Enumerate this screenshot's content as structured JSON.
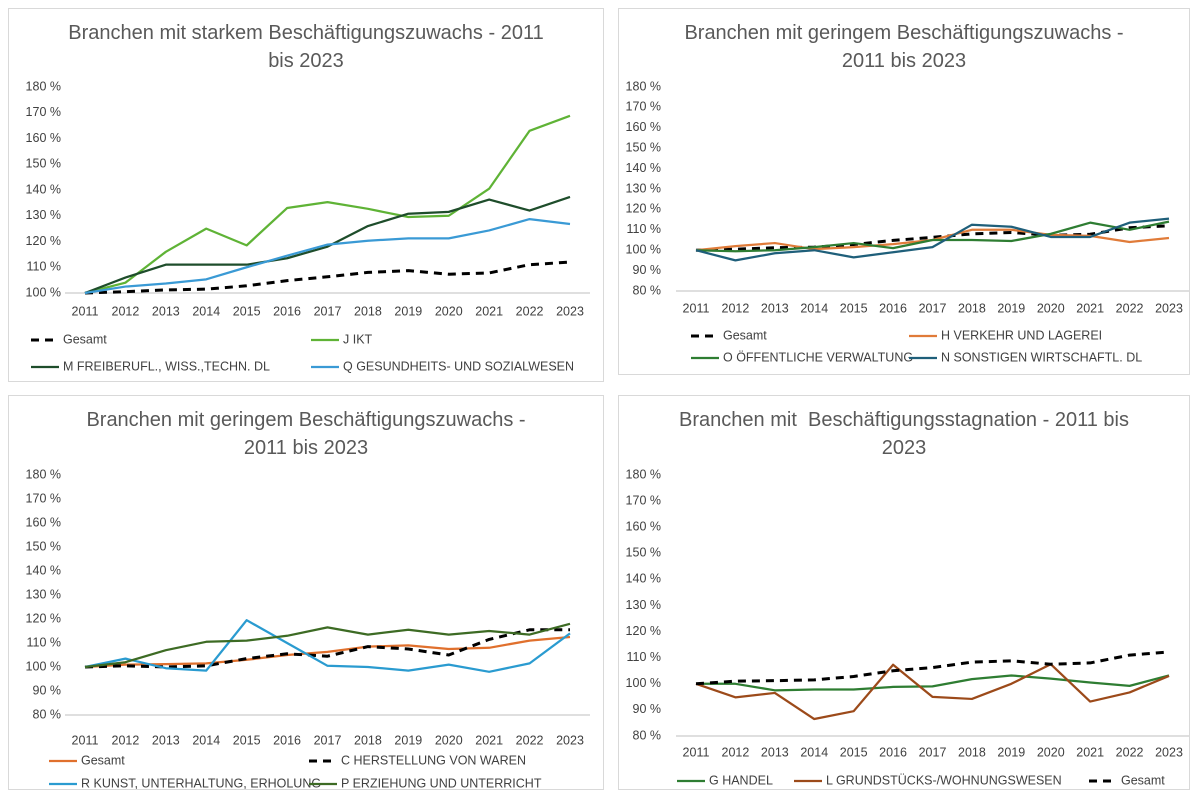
{
  "chart_data": [
    {
      "type": "line",
      "title": "Branchen mit starkem Beschäftigungszuwachs - 2011 bis 2023",
      "categories": [
        "2011",
        "2012",
        "2013",
        "2014",
        "2015",
        "2016",
        "2017",
        "2018",
        "2019",
        "2020",
        "2021",
        "2022",
        "2023"
      ],
      "ylim": [
        100,
        180
      ],
      "yticks": [
        {
          "value": 100,
          "label": "100 %"
        },
        {
          "value": 110,
          "label": "110 %"
        },
        {
          "value": 120,
          "label": "120 %"
        },
        {
          "value": 130,
          "label": "130 %"
        },
        {
          "value": 140,
          "label": "140 %"
        },
        {
          "value": 150,
          "label": "150 %"
        },
        {
          "value": 160,
          "label": "160 %"
        },
        {
          "value": 170,
          "label": "170 %"
        },
        {
          "value": 180,
          "label": "180 %"
        }
      ],
      "grid": false,
      "series": [
        {
          "name": "Gesamt",
          "color": "#000000",
          "dash": "dashed",
          "values": [
            100,
            100.5,
            101.2,
            101.5,
            102.8,
            104.8,
            106.3,
            108,
            108.7,
            107.3,
            107.8,
            111,
            112
          ]
        },
        {
          "name": "J IKT",
          "color": "#5fb336",
          "values": [
            100,
            104,
            116,
            125,
            118.5,
            133,
            135.3,
            132.7,
            129.5,
            130,
            140.5,
            163,
            168.8
          ]
        },
        {
          "name": "M FREIBERUFL., WISS.,TECHN. DL",
          "color": "#1e4d2b",
          "values": [
            100,
            106,
            111,
            111,
            111,
            113.5,
            118,
            126,
            130.8,
            131.5,
            136.3,
            132,
            137.3
          ]
        },
        {
          "name": "Q GESUNDHEITS- UND SOZIALWESEN",
          "color": "#3a9ad5",
          "values": [
            100,
            102.5,
            103.7,
            105.3,
            110,
            114.5,
            118.8,
            120.3,
            121.2,
            121.2,
            124.3,
            128.7,
            126.8
          ]
        }
      ]
    },
    {
      "type": "line",
      "title": "Branchen mit geringem Beschäftigungszuwachs - 2011 bis 2023",
      "categories": [
        "2011",
        "2012",
        "2013",
        "2014",
        "2015",
        "2016",
        "2017",
        "2018",
        "2019",
        "2020",
        "2021",
        "2022",
        "2023"
      ],
      "ylim": [
        80,
        180
      ],
      "yticks": [
        {
          "value": 80,
          "label": "80 %"
        },
        {
          "value": 90,
          "label": "90 %"
        },
        {
          "value": 100,
          "label": "100 %"
        },
        {
          "value": 110,
          "label": "110 %"
        },
        {
          "value": 120,
          "label": "120 %"
        },
        {
          "value": 130,
          "label": "130 %"
        },
        {
          "value": 140,
          "label": "140 %"
        },
        {
          "value": 150,
          "label": "150 %"
        },
        {
          "value": 160,
          "label": "160 %"
        },
        {
          "value": 170,
          "label": "170 %"
        },
        {
          "value": 180,
          "label": "180 %"
        }
      ],
      "grid": false,
      "series": [
        {
          "name": "Gesamt",
          "color": "#000000",
          "dash": "dashed",
          "values": [
            100,
            100.5,
            101.2,
            101.5,
            102.8,
            104.8,
            106.3,
            108,
            108.7,
            107.3,
            107.8,
            111,
            112
          ]
        },
        {
          "name": "H VERKEHR UND LAGEREI",
          "color": "#e07b39",
          "values": [
            100,
            102,
            103.5,
            100.5,
            101.5,
            103,
            105,
            110,
            110,
            107.5,
            107,
            104,
            106
          ]
        },
        {
          "name": "O ÖFFENTLICHE VERWALTUNG",
          "color": "#2e7d32",
          "values": [
            100,
            99.5,
            100,
            101.5,
            103.5,
            101,
            105,
            105,
            104.5,
            108,
            113.5,
            110,
            114
          ]
        },
        {
          "name": "N SONSTIGEN WIRTSCHAFTL. DL",
          "color": "#1f5f7a",
          "values": [
            100,
            95,
            98.5,
            100,
            96.5,
            99,
            101.5,
            112.5,
            111.5,
            106.5,
            106.5,
            113.5,
            115.5
          ]
        }
      ]
    },
    {
      "type": "line",
      "title": "Branchen mit geringem Beschäftigungszuwachs - 2011 bis 2023",
      "categories": [
        "2011",
        "2012",
        "2013",
        "2014",
        "2015",
        "2016",
        "2017",
        "2018",
        "2019",
        "2020",
        "2021",
        "2022",
        "2023"
      ],
      "ylim": [
        80,
        180
      ],
      "yticks": [
        {
          "value": 80,
          "label": "80 %"
        },
        {
          "value": 90,
          "label": "90 %"
        },
        {
          "value": 100,
          "label": "100 %"
        },
        {
          "value": 110,
          "label": "110 %"
        },
        {
          "value": 120,
          "label": "120 %"
        },
        {
          "value": 130,
          "label": "130 %"
        },
        {
          "value": 140,
          "label": "140 %"
        },
        {
          "value": 150,
          "label": "150 %"
        },
        {
          "value": 160,
          "label": "160 %"
        },
        {
          "value": 170,
          "label": "170 %"
        },
        {
          "value": 180,
          "label": "180 %"
        }
      ],
      "grid": false,
      "series": [
        {
          "name": "Gesamt",
          "color": "#e0702d",
          "values": [
            100,
            101,
            101.2,
            101.5,
            103,
            105,
            106.3,
            108.5,
            109,
            107.5,
            108,
            111,
            112.5
          ]
        },
        {
          "name": "C HERSTELLUNG VON WAREN",
          "color": "#000000",
          "dash": "dashed",
          "values": [
            100,
            100.5,
            100,
            100.5,
            103.5,
            105.5,
            104.5,
            108.5,
            107.5,
            105,
            111.5,
            115.5,
            115.5
          ]
        },
        {
          "name": "R KUNST, UNTERHALTUNG, ERHOLUNG",
          "color": "#2a9bd0",
          "values": [
            100,
            103.5,
            99.5,
            98.5,
            119.5,
            110,
            100.5,
            100,
            98.5,
            101,
            98,
            101.5,
            114
          ]
        },
        {
          "name": "P ERZIEHUNG UND UNTERRICHT",
          "color": "#3d6b24",
          "values": [
            100,
            102,
            107,
            110.5,
            111,
            113,
            116.5,
            113.5,
            115.5,
            113.5,
            115,
            113.5,
            118
          ]
        }
      ]
    },
    {
      "type": "line",
      "title": "Branchen mit  Beschäftigungsstagnation - 2011 bis 2023",
      "categories": [
        "2011",
        "2012",
        "2013",
        "2014",
        "2015",
        "2016",
        "2017",
        "2018",
        "2019",
        "2020",
        "2021",
        "2022",
        "2023"
      ],
      "ylim": [
        80,
        180
      ],
      "yticks": [
        {
          "value": 80,
          "label": "80 %"
        },
        {
          "value": 90,
          "label": "90 %"
        },
        {
          "value": 100,
          "label": "100 %"
        },
        {
          "value": 110,
          "label": "110 %"
        },
        {
          "value": 120,
          "label": "120 %"
        },
        {
          "value": 130,
          "label": "130 %"
        },
        {
          "value": 140,
          "label": "140 %"
        },
        {
          "value": 150,
          "label": "150 %"
        },
        {
          "value": 160,
          "label": "160 %"
        },
        {
          "value": 170,
          "label": "170 %"
        },
        {
          "value": 180,
          "label": "180 %"
        }
      ],
      "grid": false,
      "series": [
        {
          "name": "G HANDEL",
          "color": "#2e7d32",
          "values": [
            100,
            100,
            97.5,
            97.8,
            97.8,
            98.8,
            99,
            101.8,
            103.2,
            102,
            100.5,
            99.2,
            103.2
          ]
        },
        {
          "name": "L GRUNDSTÜCKS-/WOHNUNGSWESEN",
          "color": "#9c4a1a",
          "values": [
            100,
            94.8,
            96.5,
            86.5,
            89.5,
            107.3,
            95,
            94.2,
            100,
            107.5,
            93.2,
            96.7,
            103
          ]
        },
        {
          "name": "Gesamt",
          "color": "#000000",
          "dash": "dashed",
          "values": [
            100,
            101,
            101.2,
            101.5,
            102.8,
            105,
            106.2,
            108.3,
            108.8,
            107.5,
            108,
            111,
            112.2
          ]
        }
      ]
    }
  ]
}
